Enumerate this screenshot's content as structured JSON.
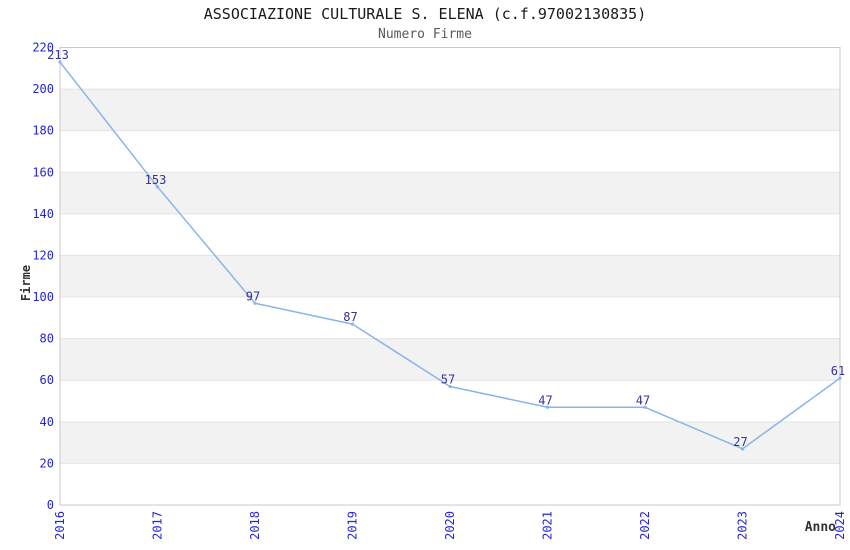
{
  "chart_data": {
    "type": "line",
    "title": "ASSOCIAZIONE CULTURALE S. ELENA (c.f.97002130835)",
    "subtitle": "Numero Firme",
    "xlabel": "Anno",
    "ylabel": "Firme",
    "categories": [
      "2016",
      "2017",
      "2018",
      "2019",
      "2020",
      "2021",
      "2022",
      "2023",
      "2024"
    ],
    "values": [
      213,
      153,
      97,
      87,
      57,
      47,
      47,
      27,
      61
    ],
    "ylim": [
      0,
      220
    ],
    "ytick_step": 20,
    "yticks": [
      0,
      20,
      40,
      60,
      80,
      100,
      120,
      140,
      160,
      180,
      200,
      220
    ],
    "grid": "horizontal",
    "banding": "alternating-gray-every-20",
    "legend": "none",
    "data_labels_shown": true,
    "colors": {
      "line": "#8ab4e8",
      "tick_label": "#2626d8",
      "data_label": "#333399",
      "band": "#f2f2f2",
      "grid_line": "#e4e4e4",
      "plot_border": "#c9c9c9",
      "title": "#1a1a1a",
      "subtitle": "#595959",
      "axis_title": "#333333",
      "background": "#ffffff"
    }
  }
}
